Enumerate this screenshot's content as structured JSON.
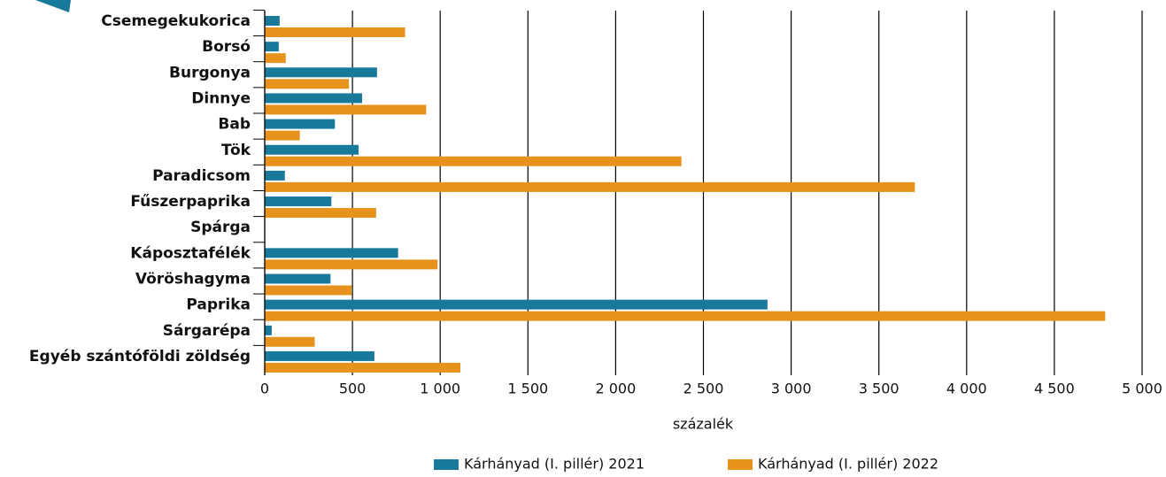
{
  "chart_data": {
    "type": "hbar",
    "categories": [
      "Csemegekukorica",
      "Borsó",
      "Burgonya",
      "Dinnye",
      "Bab",
      "Tök",
      "Paradicsom",
      "Fűszerpaprika",
      "Spárga",
      "Káposztafélék",
      "Vöröshagyma",
      "Paprika",
      "Sárgarépa",
      "Egyéb szántóföldi zöldség"
    ],
    "series": [
      {
        "name": "Kárhányad (I. pillér) 2021",
        "color": "#18799b",
        "values": [
          85,
          80,
          640,
          555,
          400,
          535,
          115,
          380,
          0,
          760,
          375,
          2865,
          40,
          625
        ]
      },
      {
        "name": "Kárhányad (I. pillér) 2022",
        "color": "#e8921e",
        "values": [
          800,
          120,
          480,
          920,
          200,
          2375,
          3705,
          635,
          0,
          985,
          495,
          4790,
          285,
          1115
        ]
      }
    ],
    "xlabel": "százalék",
    "xlim": [
      0,
      5000
    ],
    "xticks": [
      0,
      500,
      {
        "value": 1000,
        "label": "1 000"
      },
      {
        "value": 1500,
        "label": "1 500"
      },
      {
        "value": 2000,
        "label": "2 000"
      },
      {
        "value": 2500,
        "label": "2 500"
      },
      {
        "value": 3000,
        "label": "3 000"
      },
      {
        "value": 3500,
        "label": "3 500"
      },
      {
        "value": 4000,
        "label": "4 000"
      },
      {
        "value": 4500,
        "label": "4 500"
      },
      {
        "value": 5000,
        "label": "5 000"
      }
    ],
    "grid": true,
    "legend": "bottom"
  }
}
